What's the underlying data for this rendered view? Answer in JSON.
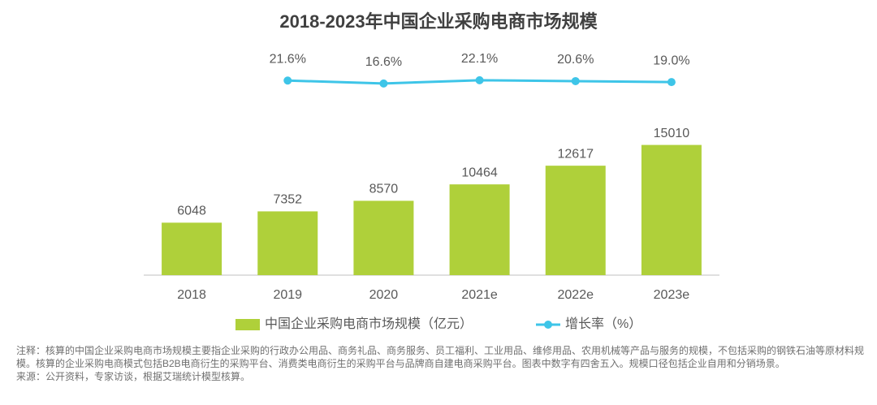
{
  "chart_data": {
    "type": "bar+line",
    "title": "2018-2023年中国企业采购电商市场规模",
    "categories": [
      "2018",
      "2019",
      "2020",
      "2021e",
      "2022e",
      "2023e"
    ],
    "ylim": [
      0,
      16000
    ],
    "y2lim": [
      0,
      100
    ],
    "series": [
      {
        "name": "中国企业采购电商市场规模（亿元）",
        "type": "bar",
        "color": "#afd03a",
        "values": [
          6048,
          7352,
          8570,
          10464,
          12617,
          15010
        ]
      },
      {
        "name": "增长率（%）",
        "type": "line",
        "axis": "y2",
        "color": "#3ec5e8",
        "values": [
          null,
          21.6,
          16.6,
          22.1,
          20.6,
          19.0
        ],
        "value_labels": [
          null,
          "21.6%",
          "16.6%",
          "22.1%",
          "20.6%",
          "19.0%"
        ]
      }
    ],
    "legend": "bottom",
    "note": "注释：核算的中国企业采购电商市场规模主要指企业采购的行政办公用品、商务礼品、商务服务、员工福利、工业用品、维修用品、农用机械等产品与服务的规模，不包括采购的钢铁石油等原材料规模。核算的企业采购电商模式包括B2B电商衍生的采购平台、消费类电商衍生的采购平台与品牌商自建电商采购平台。图表中数字有四舍五入。规模口径包括企业自用和分销场景。",
    "source": "来源：公开资料，专家访谈，根据艾瑞统计模型核算。"
  }
}
